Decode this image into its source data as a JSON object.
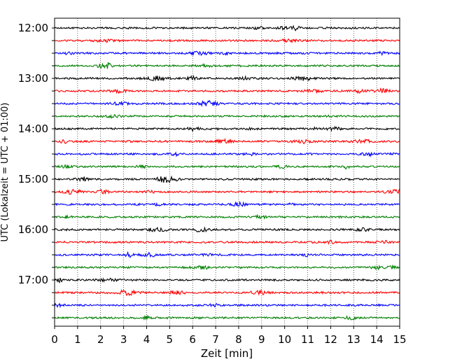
{
  "chart_data": {
    "type": "line",
    "title": "",
    "xlabel": "Zeit  [min]",
    "ylabel": "UTC (Lokalzeit = UTC + 01:00)",
    "xlim": [
      0,
      15
    ],
    "x_ticks": [
      "0",
      "1",
      "2",
      "3",
      "4",
      "5",
      "6",
      "7",
      "8",
      "9",
      "10",
      "11",
      "12",
      "13",
      "14",
      "15"
    ],
    "y_tick_labels": [
      "12:00",
      "13:00",
      "14:00",
      "15:00",
      "16:00",
      "17:00"
    ],
    "grid": "vertical dotted",
    "trace_start_utc": "12:00",
    "trace_interval_minutes": 15,
    "trace_count": 24,
    "trace_colors": [
      "#000000",
      "#ff0000",
      "#0000ff",
      "#008000"
    ]
  }
}
